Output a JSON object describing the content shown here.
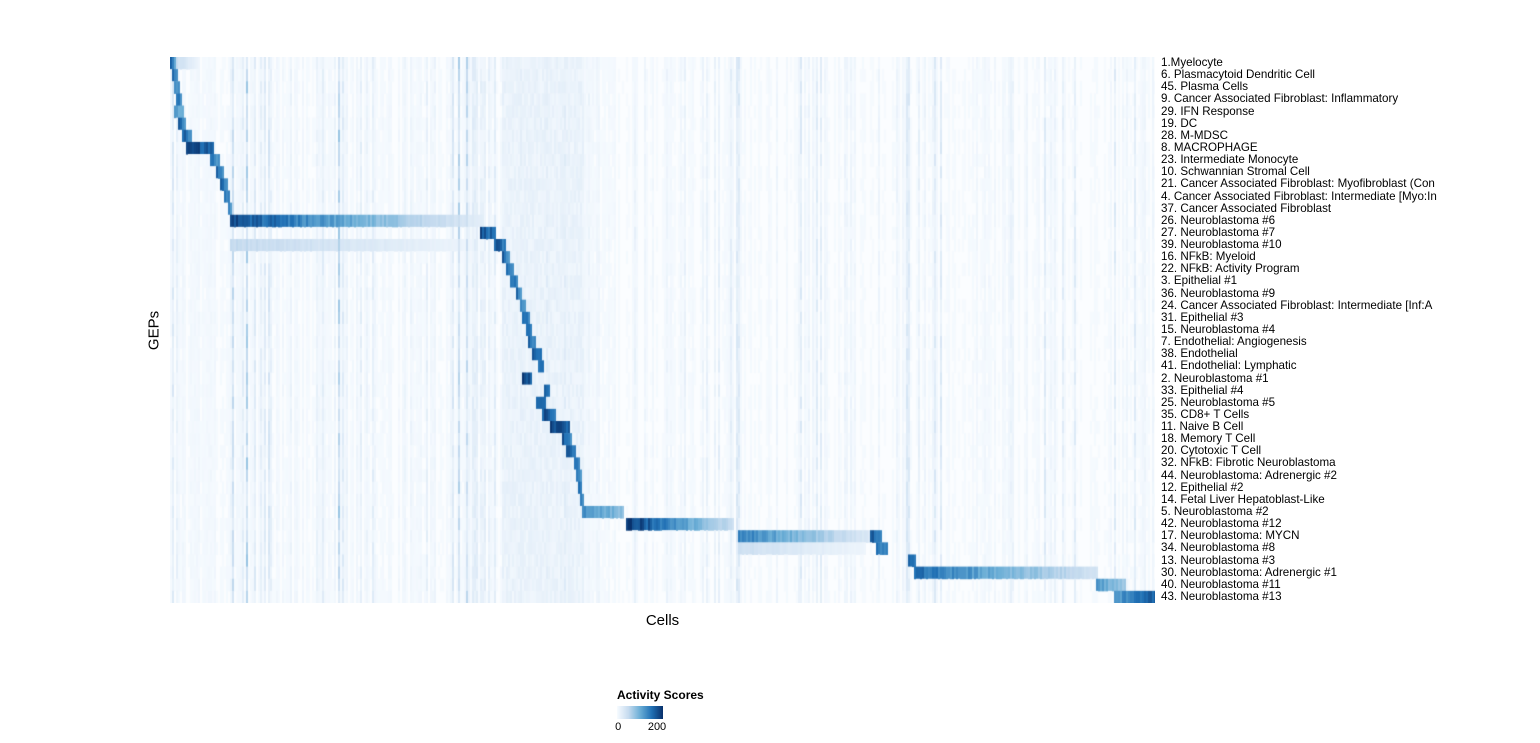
{
  "chart_data": {
    "type": "heatmap",
    "title": "",
    "xlabel": "Cells",
    "ylabel": "GEPs",
    "background": "#fbfdff",
    "legend": {
      "title": "Activity Scores",
      "tick_min": "0",
      "tick_max": "200",
      "value_min": 0,
      "value_max": 200,
      "colormap_low": "#f7fbff",
      "colormap_high": "#08306b"
    },
    "noise_bands": [
      {
        "s": 0.306,
        "e": 0.312,
        "v": 22
      },
      {
        "s": 0.337,
        "e": 0.42,
        "v": 16
      },
      {
        "s": 0.574,
        "e": 0.578,
        "v": 30
      },
      {
        "s": 0.746,
        "e": 0.75,
        "v": 30
      }
    ],
    "rows": [
      {
        "label": "1.Myelocyte",
        "blocks": [
          {
            "s": 0.0,
            "e": 0.007,
            "v0": 200,
            "v1": 110
          },
          {
            "s": 0.0,
            "e": 0.03,
            "v0": 70,
            "v1": 10
          }
        ]
      },
      {
        "label": "6. Plasmacytoid Dendritic Cell",
        "blocks": [
          {
            "s": 0.002,
            "e": 0.009,
            "v0": 190,
            "v1": 130
          }
        ]
      },
      {
        "label": "45. Plasma Cells",
        "blocks": [
          {
            "s": 0.005,
            "e": 0.011,
            "v0": 180,
            "v1": 130
          }
        ]
      },
      {
        "label": "9. Cancer Associated Fibroblast: Inflammatory",
        "blocks": [
          {
            "s": 0.007,
            "e": 0.013,
            "v0": 190,
            "v1": 140
          }
        ]
      },
      {
        "label": "29. IFN Response",
        "blocks": [
          {
            "s": 0.004,
            "e": 0.014,
            "v0": 170,
            "v1": 110
          }
        ]
      },
      {
        "label": "19. DC",
        "blocks": [
          {
            "s": 0.009,
            "e": 0.017,
            "v0": 200,
            "v1": 150
          }
        ]
      },
      {
        "label": "28. M-MDSC",
        "blocks": [
          {
            "s": 0.012,
            "e": 0.023,
            "v0": 215,
            "v1": 160
          }
        ]
      },
      {
        "label": "8. MACROPHAGE",
        "blocks": [
          {
            "s": 0.016,
            "e": 0.044,
            "v0": 235,
            "v1": 205
          }
        ]
      },
      {
        "label": "23. Intermediate Monocyte",
        "blocks": [
          {
            "s": 0.041,
            "e": 0.051,
            "v0": 190,
            "v1": 140
          }
        ]
      },
      {
        "label": "10. Schwannian Stromal Cell",
        "blocks": [
          {
            "s": 0.047,
            "e": 0.055,
            "v0": 205,
            "v1": 160
          }
        ]
      },
      {
        "label": "21. Cancer Associated Fibroblast: Myofibroblast (Con",
        "blocks": [
          {
            "s": 0.051,
            "e": 0.058,
            "v0": 195,
            "v1": 150
          }
        ]
      },
      {
        "label": "4. Cancer Associated Fibroblast: Intermediate [Myo:In",
        "blocks": [
          {
            "s": 0.055,
            "e": 0.061,
            "v0": 195,
            "v1": 150
          }
        ]
      },
      {
        "label": "37. Cancer Associated Fibroblast",
        "blocks": [
          {
            "s": 0.058,
            "e": 0.063,
            "v0": 185,
            "v1": 145
          }
        ]
      },
      {
        "label": "26. Neuroblastoma #6",
        "blocks": [
          {
            "s": 0.061,
            "e": 0.318,
            "v0": 225,
            "v1": 25
          }
        ]
      },
      {
        "label": "27. Neuroblastoma #7",
        "blocks": [
          {
            "s": 0.314,
            "e": 0.33,
            "v0": 235,
            "v1": 180
          }
        ]
      },
      {
        "label": "39. Neuroblastoma #10",
        "blocks": [
          {
            "s": 0.061,
            "e": 0.31,
            "v0": 65,
            "v1": 12
          },
          {
            "s": 0.328,
            "e": 0.34,
            "v0": 225,
            "v1": 175
          }
        ]
      },
      {
        "label": "16. NFkB: Myeloid",
        "blocks": [
          {
            "s": 0.336,
            "e": 0.344,
            "v0": 210,
            "v1": 160
          }
        ]
      },
      {
        "label": "22. NFkB: Activity Program",
        "blocks": [
          {
            "s": 0.34,
            "e": 0.349,
            "v0": 205,
            "v1": 155
          }
        ]
      },
      {
        "label": "3. Epithelial #1",
        "blocks": [
          {
            "s": 0.345,
            "e": 0.353,
            "v0": 210,
            "v1": 160
          }
        ]
      },
      {
        "label": "36. Neuroblastoma #9",
        "blocks": [
          {
            "s": 0.35,
            "e": 0.357,
            "v0": 200,
            "v1": 150
          }
        ]
      },
      {
        "label": "24. Cancer Associated Fibroblast: Intermediate [Inf:A",
        "blocks": [
          {
            "s": 0.354,
            "e": 0.361,
            "v0": 195,
            "v1": 150
          }
        ]
      },
      {
        "label": "31. Epithelial #3",
        "blocks": [
          {
            "s": 0.358,
            "e": 0.365,
            "v0": 200,
            "v1": 155
          }
        ]
      },
      {
        "label": "15. Neuroblastoma #4",
        "blocks": [
          {
            "s": 0.362,
            "e": 0.368,
            "v0": 200,
            "v1": 155
          }
        ]
      },
      {
        "label": "7. Endothelial: Angiogenesis",
        "blocks": [
          {
            "s": 0.364,
            "e": 0.371,
            "v0": 205,
            "v1": 155
          }
        ]
      },
      {
        "label": "38. Endothelial",
        "blocks": [
          {
            "s": 0.367,
            "e": 0.377,
            "v0": 225,
            "v1": 185
          }
        ]
      },
      {
        "label": "41. Endothelial: Lymphatic",
        "blocks": [
          {
            "s": 0.374,
            "e": 0.38,
            "v0": 205,
            "v1": 160
          }
        ]
      },
      {
        "label": "2. Neuroblastoma #1",
        "blocks": [
          {
            "s": 0.358,
            "e": 0.368,
            "v0": 235,
            "v1": 195
          }
        ]
      },
      {
        "label": "33. Epithelial #4",
        "blocks": [
          {
            "s": 0.379,
            "e": 0.386,
            "v0": 205,
            "v1": 160
          }
        ]
      },
      {
        "label": "25. Neuroblastoma #5",
        "blocks": [
          {
            "s": 0.372,
            "e": 0.382,
            "v0": 220,
            "v1": 180
          }
        ]
      },
      {
        "label": "35. CD8+ T Cells",
        "blocks": [
          {
            "s": 0.377,
            "e": 0.392,
            "v0": 225,
            "v1": 185
          }
        ]
      },
      {
        "label": "11. Naive B Cell",
        "blocks": [
          {
            "s": 0.385,
            "e": 0.405,
            "v0": 245,
            "v1": 205
          }
        ]
      },
      {
        "label": "18. Memory T Cell",
        "blocks": [
          {
            "s": 0.397,
            "e": 0.407,
            "v0": 215,
            "v1": 170
          }
        ]
      },
      {
        "label": "20. Cytotoxic T Cell",
        "blocks": [
          {
            "s": 0.402,
            "e": 0.412,
            "v0": 215,
            "v1": 170
          }
        ]
      },
      {
        "label": "32. NFkB: Fibrotic Neuroblastoma",
        "blocks": [
          {
            "s": 0.409,
            "e": 0.415,
            "v0": 205,
            "v1": 160
          }
        ]
      },
      {
        "label": "44. Neuroblastoma: Adrenergic #2",
        "blocks": [
          {
            "s": 0.412,
            "e": 0.417,
            "v0": 195,
            "v1": 155
          }
        ]
      },
      {
        "label": "12. Epithelial #2",
        "blocks": [
          {
            "s": 0.414,
            "e": 0.418,
            "v0": 190,
            "v1": 150
          }
        ]
      },
      {
        "label": "14. Fetal Liver Hepatoblast-Like",
        "blocks": [
          {
            "s": 0.415,
            "e": 0.419,
            "v0": 190,
            "v1": 150
          }
        ]
      },
      {
        "label": "5. Neuroblastoma #2",
        "blocks": [
          {
            "s": 0.418,
            "e": 0.46,
            "v0": 165,
            "v1": 105
          }
        ]
      },
      {
        "label": "42. Neuroblastoma #12",
        "blocks": [
          {
            "s": 0.463,
            "e": 0.572,
            "v0": 245,
            "v1": 55
          }
        ]
      },
      {
        "label": "17. Neuroblastoma: MYCN",
        "blocks": [
          {
            "s": 0.577,
            "e": 0.71,
            "v0": 175,
            "v1": 35
          },
          {
            "s": 0.71,
            "e": 0.723,
            "v0": 225,
            "v1": 180
          }
        ]
      },
      {
        "label": "34. Neuroblastoma #8",
        "blocks": [
          {
            "s": 0.577,
            "e": 0.705,
            "v0": 55,
            "v1": 12
          },
          {
            "s": 0.716,
            "e": 0.729,
            "v0": 205,
            "v1": 155
          }
        ]
      },
      {
        "label": "13. Neuroblastoma #3",
        "blocks": [
          {
            "s": 0.749,
            "e": 0.757,
            "v0": 225,
            "v1": 175
          }
        ]
      },
      {
        "label": "30. Neuroblastoma: Adrenergic #1",
        "blocks": [
          {
            "s": 0.755,
            "e": 0.941,
            "v0": 195,
            "v1": 45
          }
        ]
      },
      {
        "label": "40. Neuroblastoma #11",
        "blocks": [
          {
            "s": 0.939,
            "e": 0.97,
            "v0": 150,
            "v1": 85
          }
        ]
      },
      {
        "label": "43. Neuroblastoma #13",
        "blocks": [
          {
            "s": 0.957,
            "e": 1.0,
            "v0": 140,
            "v1": 215
          }
        ]
      }
    ]
  }
}
